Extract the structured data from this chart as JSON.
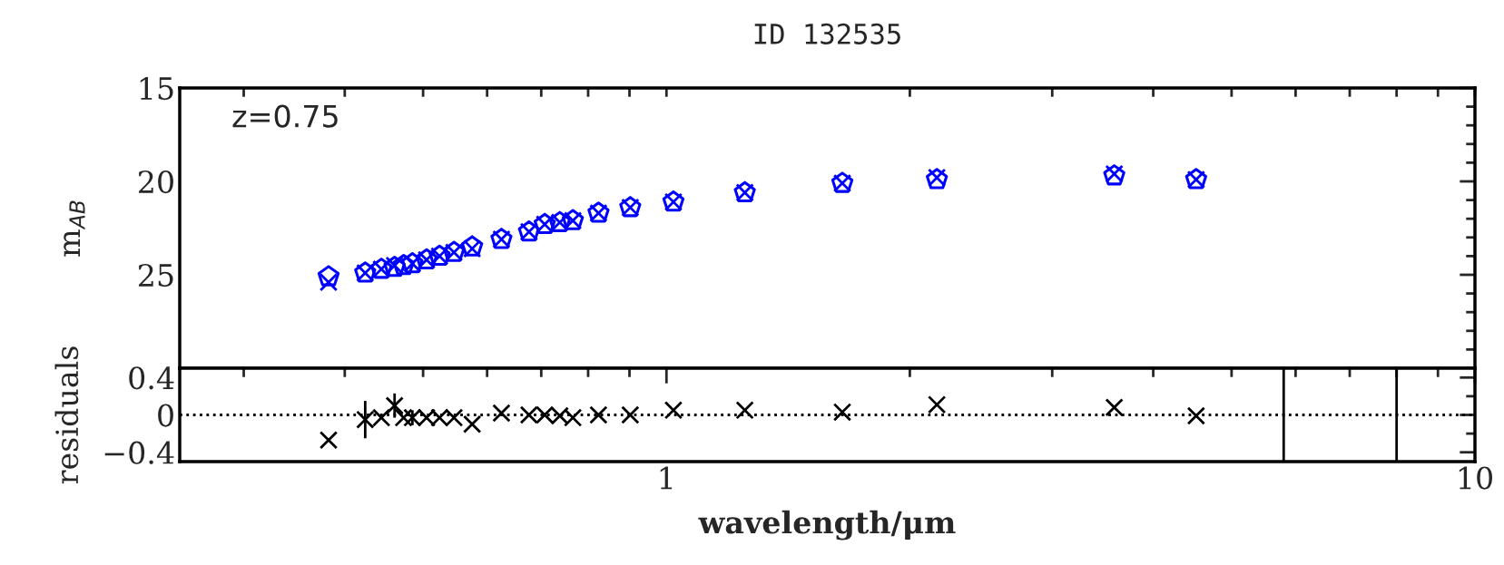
{
  "chart_data": [
    {
      "type": "scatter",
      "title": "ID 132535",
      "ylabel": "m$_{AB}$",
      "annotations": [
        "z=0.75"
      ],
      "log": "x",
      "tick_labels": "y",
      "grid": false,
      "x": [
        0.382,
        0.424,
        0.444,
        0.461,
        0.473,
        0.485,
        0.505,
        0.524,
        0.546,
        0.575,
        0.625,
        0.676,
        0.707,
        0.738,
        0.766,
        0.824,
        0.902,
        1.02,
        1.25,
        1.65,
        2.16,
        3.58,
        4.52
      ],
      "series": [
        {
          "color": "#0000ff",
          "values": [
            25.1,
            24.9,
            24.7,
            24.6,
            24.5,
            24.4,
            24.2,
            24.0,
            23.8,
            23.5,
            23.1,
            22.7,
            22.3,
            22.2,
            22.1,
            21.7,
            21.4,
            21.1,
            20.6,
            20.1,
            19.9,
            19.7,
            19.9
          ]
        },
        {
          "color": "#0000ff",
          "marker": "cross",
          "values": [
            25.4,
            24.9,
            24.7,
            24.5,
            null,
            24.4,
            24.2,
            24.0,
            23.8,
            23.6,
            23.1,
            22.7,
            22.3,
            22.2,
            22.1,
            21.7,
            21.4,
            21.1,
            20.6,
            20.1,
            19.8,
            19.6,
            19.9
          ]
        }
      ],
      "xlim": [
        0.25,
        10
      ],
      "xticks": [
        {
          "value": 0.3,
          "label": null
        },
        {
          "value": 0.4,
          "label": null
        },
        {
          "value": 0.5,
          "label": null
        },
        {
          "value": 0.6,
          "label": null
        },
        {
          "value": 0.7,
          "label": null
        },
        {
          "value": 0.8,
          "label": null
        },
        {
          "value": 0.9,
          "label": null
        },
        {
          "value": 1,
          "label": null
        },
        {
          "value": 2,
          "label": null
        },
        {
          "value": 3,
          "label": null
        },
        {
          "value": 4,
          "label": null
        },
        {
          "value": 5,
          "label": null
        },
        {
          "value": 6,
          "label": null
        },
        {
          "value": 7,
          "label": null
        },
        {
          "value": 8,
          "label": null
        },
        {
          "value": 9,
          "label": null
        },
        {
          "value": 10,
          "label": null
        }
      ],
      "ylim": [
        30,
        15
      ],
      "yticks": [
        15,
        {
          "value": 16,
          "label": null
        },
        {
          "value": 17,
          "label": null
        },
        {
          "value": 18,
          "label": null
        },
        {
          "value": 19,
          "label": null
        },
        20,
        {
          "value": 21,
          "label": null
        },
        {
          "value": 22,
          "label": null
        },
        {
          "value": 23,
          "label": null
        },
        {
          "value": 24,
          "label": null
        },
        25,
        {
          "value": 26,
          "label": null
        },
        {
          "value": 27,
          "label": null
        },
        {
          "value": 28,
          "label": null
        },
        {
          "value": 29,
          "label": null
        }
      ]
    },
    {
      "type": "scatter",
      "xlabel": "wavelength/μm",
      "ylabel": "residuals",
      "log": "x",
      "grid": false,
      "marker": "cross",
      "x": [
        0.382,
        0.424,
        0.444,
        0.461,
        0.473,
        0.485,
        0.505,
        0.524,
        0.546,
        0.575,
        0.625,
        0.676,
        0.707,
        0.738,
        0.766,
        0.824,
        0.902,
        1.02,
        1.25,
        1.65,
        2.16,
        3.58,
        4.52
      ],
      "series": [
        {
          "color": "#000000",
          "values": [
            -0.27,
            -0.05,
            -0.03,
            0.1,
            -0.03,
            -0.03,
            -0.03,
            -0.03,
            -0.03,
            -0.1,
            0.02,
            0.0,
            0.0,
            -0.01,
            -0.03,
            0.0,
            0.0,
            0.05,
            0.05,
            0.03,
            0.11,
            0.08,
            -0.01
          ],
          "errors": [
            null,
            0.2,
            null,
            0.13,
            null,
            0.08,
            null,
            null,
            null,
            null,
            null,
            null,
            null,
            null,
            null,
            null,
            null,
            null,
            null,
            null,
            null,
            null,
            null
          ]
        }
      ],
      "ref_lines": [
        {
          "axis": "y",
          "value": 0,
          "line_style": "dotted",
          "color": "#000000"
        },
        {
          "axis": "x",
          "value": 5.8,
          "line_style": "solid",
          "color": "#000000"
        },
        {
          "axis": "x",
          "value": 8.0,
          "line_style": "solid",
          "color": "#000000"
        }
      ],
      "xlim": [
        0.25,
        10
      ],
      "xticks": [
        {
          "value": 0.3,
          "label": null
        },
        {
          "value": 0.4,
          "label": null
        },
        {
          "value": 0.5,
          "label": null
        },
        {
          "value": 0.6,
          "label": null
        },
        {
          "value": 0.7,
          "label": null
        },
        {
          "value": 0.8,
          "label": null
        },
        {
          "value": 0.9,
          "label": null
        },
        1,
        {
          "value": 2,
          "label": null
        },
        {
          "value": 3,
          "label": null
        },
        {
          "value": 4,
          "label": null
        },
        {
          "value": 5,
          "label": null
        },
        {
          "value": 6,
          "label": null
        },
        {
          "value": 7,
          "label": null
        },
        {
          "value": 8,
          "label": null
        },
        {
          "value": 9,
          "label": null
        },
        10
      ],
      "ylim": [
        -0.5,
        0.5
      ],
      "yticks": [
        {
          "value": -0.4,
          "label": "−0.4"
        },
        {
          "value": -0.2,
          "label": null
        },
        0,
        {
          "value": 0.2,
          "label": null
        },
        0.4
      ]
    }
  ]
}
